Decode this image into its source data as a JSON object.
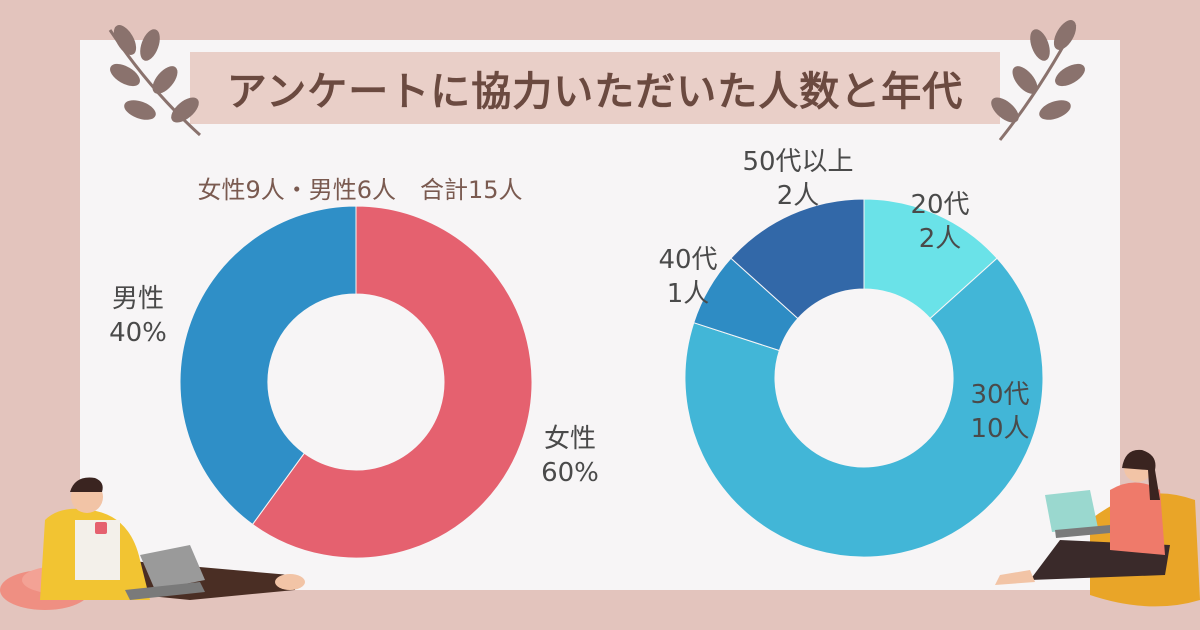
{
  "title": "アンケートに協力いただいた人数と年代",
  "summary": "女性9人・男性6人　合計15人",
  "colors": {
    "female": "#e5616f",
    "male": "#2f8fc7",
    "age20": "#6ae2e8",
    "age30": "#42b6d7",
    "age40": "#2e8cc4",
    "age50": "#3268a8"
  },
  "chart_data": [
    {
      "type": "pie",
      "title": "女性9人・男性6人　合計15人",
      "slices": [
        {
          "name": "女性",
          "label_line1": "女性",
          "label_line2": "60%",
          "value": 60
        },
        {
          "name": "男性",
          "label_line1": "男性",
          "label_line2": "40%",
          "value": 40
        }
      ]
    },
    {
      "type": "pie",
      "slices": [
        {
          "name": "20代",
          "label_line1": "20代",
          "label_line2": "2人",
          "value": 2
        },
        {
          "name": "30代",
          "label_line1": "30代",
          "label_line2": "10人",
          "value": 10
        },
        {
          "name": "40代",
          "label_line1": "40代",
          "label_line2": "1人",
          "value": 1
        },
        {
          "name": "50代以上",
          "label_line1": "50代以上",
          "label_line2": "2人",
          "value": 2
        }
      ]
    }
  ]
}
